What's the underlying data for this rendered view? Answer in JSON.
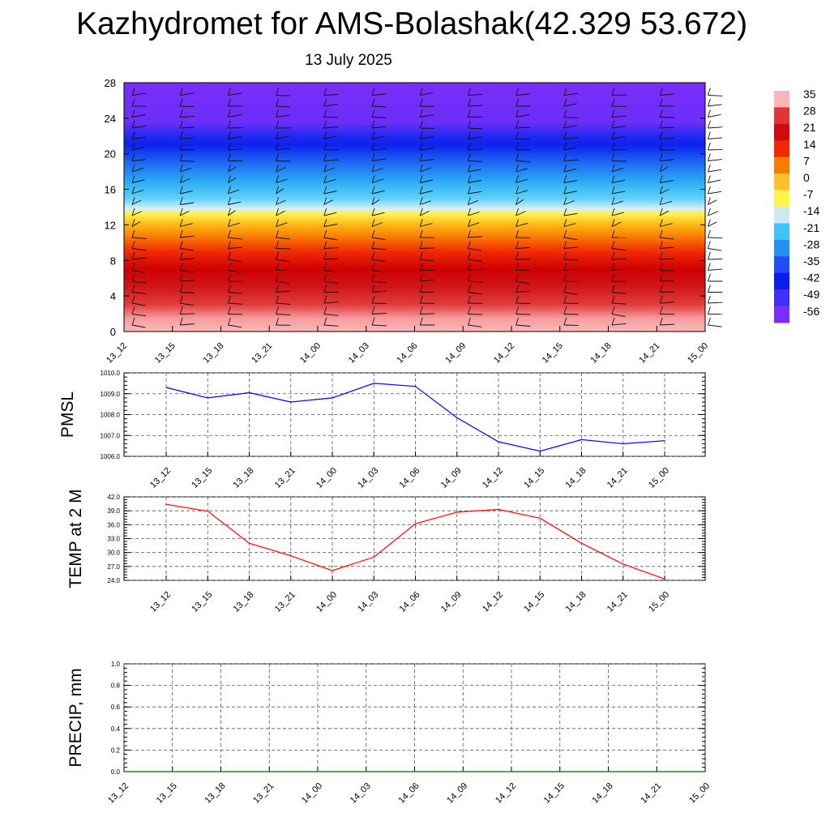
{
  "title": "Kazhydromet for AMS-Bolashak(42.329 53.672)",
  "subtitle": "13 July 2025",
  "time_labels": [
    "13_12",
    "13_15",
    "13_18",
    "13_21",
    "14_00",
    "14_03",
    "14_06",
    "14_09",
    "14_12",
    "14_15",
    "14_18",
    "14_21",
    "15_00"
  ],
  "chart_data": [
    {
      "type": "heatmap",
      "title": "",
      "xlabel": "",
      "ylabel": "",
      "x": [
        "13_12",
        "13_15",
        "13_18",
        "13_21",
        "14_00",
        "14_03",
        "14_06",
        "14_09",
        "14_12",
        "14_15",
        "14_18",
        "14_21",
        "15_00"
      ],
      "ylim": [
        0,
        28
      ],
      "yticks": [
        0,
        4,
        8,
        12,
        16,
        20,
        24,
        28
      ],
      "colorbar": {
        "labels": [
          "35",
          "28",
          "21",
          "14",
          "7",
          "0",
          "-7",
          "-14",
          "-21",
          "-28",
          "-35",
          "-42",
          "-49",
          "-56"
        ],
        "values": [
          35,
          28,
          21,
          14,
          7,
          0,
          -7,
          -14,
          -21,
          -28,
          -35,
          -42,
          -49,
          -56
        ],
        "colors": [
          "#fbb6b8",
          "#e23437",
          "#d10a0c",
          "#f22906",
          "#fb7a00",
          "#fec12d",
          "#fff54b",
          "#cfe9f4",
          "#3cc5f5",
          "#2392f2",
          "#1f4ef6",
          "#0d1ded",
          "#4330f7",
          "#7b2dfb"
        ]
      },
      "wind_barbs": true
    },
    {
      "type": "line",
      "ylabel": "PMSL",
      "x": [
        "13_12",
        "13_15",
        "13_18",
        "13_21",
        "14_00",
        "14_03",
        "14_06",
        "14_09",
        "14_12",
        "14_15",
        "14_18",
        "14_21",
        "15_00"
      ],
      "series": [
        {
          "values": [
            1009.3,
            1008.8,
            1009.05,
            1008.6,
            1008.8,
            1009.5,
            1009.35,
            1007.85,
            1006.7,
            1006.25,
            1006.8,
            1006.6,
            1006.75
          ]
        }
      ],
      "ylim": [
        1006.0,
        1010.0
      ],
      "yticks": [
        "1006.0",
        "1007.0",
        "1008.0",
        "1009.0",
        "1010.0"
      ],
      "color": "#0000ff",
      "grid": true
    },
    {
      "type": "line",
      "ylabel": "TEMP at 2 M",
      "x": [
        "13_12",
        "13_15",
        "13_18",
        "13_21",
        "14_00",
        "14_03",
        "14_06",
        "14_09",
        "14_12",
        "14_15",
        "14_18",
        "14_21",
        "15_00"
      ],
      "series": [
        {
          "values": [
            40.4,
            38.9,
            32.0,
            29.3,
            26.1,
            29.0,
            36.2,
            38.7,
            39.3,
            37.4,
            32.0,
            27.5,
            24.3
          ]
        }
      ],
      "ylim": [
        24.0,
        42.0
      ],
      "yticks": [
        "24.0",
        "27.0",
        "30.0",
        "33.0",
        "36.0",
        "39.0",
        "42.0"
      ],
      "color": "#ff0000",
      "grid": true
    },
    {
      "type": "line",
      "ylabel": "PRECIP, mm",
      "x": [
        "13_12",
        "13_15",
        "13_18",
        "13_21",
        "14_00",
        "14_03",
        "14_06",
        "14_09",
        "14_12",
        "14_15",
        "14_18",
        "14_21",
        "15_00"
      ],
      "series": [
        {
          "values": [
            0,
            0,
            0,
            0,
            0,
            0,
            0,
            0,
            0,
            0,
            0,
            0,
            0
          ]
        }
      ],
      "ylim": [
        0.0,
        1.0
      ],
      "yticks": [
        "0.0",
        "0.2",
        "0.4",
        "0.6",
        "0.8",
        "1.0"
      ],
      "color": "#006400",
      "grid": true
    }
  ]
}
